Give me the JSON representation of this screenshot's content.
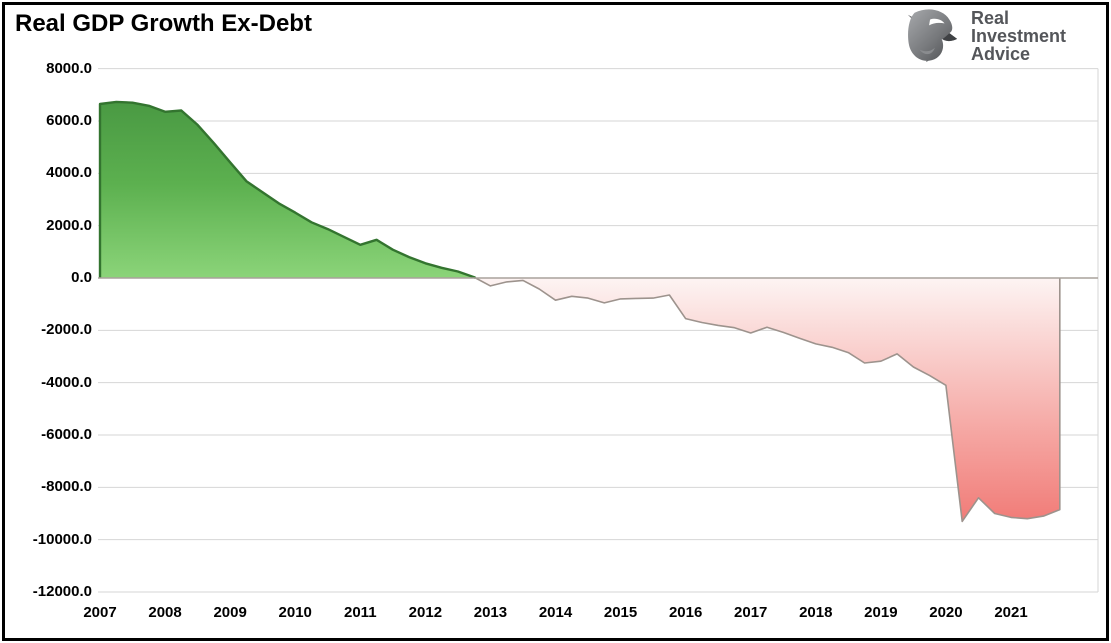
{
  "header": {
    "title": "Real GDP Growth Ex-Debt"
  },
  "logo": {
    "lines": [
      "Real",
      "Investment",
      "Advice"
    ],
    "icon": "eagle-icon"
  },
  "chart_data": {
    "type": "area",
    "title": "Real GDP Growth Ex-Debt",
    "x_unit": "quarterly",
    "x_start": "2007Q1",
    "x_end": "2021Q4",
    "series": [
      {
        "name": "Real GDP Growth Ex-Debt",
        "values": [
          6650,
          6730,
          6700,
          6580,
          6350,
          6400,
          5850,
          5150,
          4420,
          3700,
          3270,
          2850,
          2500,
          2130,
          1870,
          1570,
          1270,
          1460,
          1080,
          800,
          560,
          390,
          250,
          30,
          -300,
          -150,
          -90,
          -420,
          -850,
          -700,
          -770,
          -950,
          -800,
          -780,
          -770,
          -650,
          -1550,
          -1700,
          -1810,
          -1900,
          -2100,
          -1880,
          -2080,
          -2300,
          -2520,
          -2650,
          -2850,
          -3250,
          -3180,
          -2900,
          -3400,
          -3730,
          -4100,
          -9300,
          -8400,
          -9000,
          -9150,
          -9200,
          -9100,
          -8850
        ]
      }
    ],
    "x_tick_labels": [
      "2007",
      "2008",
      "2009",
      "2010",
      "2011",
      "2012",
      "2013",
      "2014",
      "2015",
      "2016",
      "2017",
      "2018",
      "2019",
      "2020",
      "2021"
    ],
    "y_tick_values": [
      8000,
      6000,
      4000,
      2000,
      0,
      -2000,
      -4000,
      -6000,
      -8000,
      -10000,
      -12000
    ],
    "y_tick_labels": [
      "8000.0",
      "6000.0",
      "4000.0",
      "2000.0",
      "0.0",
      "-2000.0",
      "-4000.0",
      "-6000.0",
      "-8000.0",
      "-10000.0",
      "-12000.0"
    ],
    "ylim": [
      -12000,
      8000
    ],
    "baseline": 0,
    "grid": "horizontal",
    "legend": "none",
    "colors": {
      "positive_gradient_top": "#42903e",
      "positive_gradient_mid": "#5cb04f",
      "positive_gradient_bottom": "#8bd479",
      "positive_stroke": "#33742f",
      "negative_gradient_top": "#fdf4f3",
      "negative_gradient_mid": "#f5a5a1",
      "negative_gradient_bottom": "#ee5a56",
      "negative_stroke": "#9d938d",
      "gridline": "#d6d6d6",
      "zero_line": "#a9a29c"
    }
  }
}
